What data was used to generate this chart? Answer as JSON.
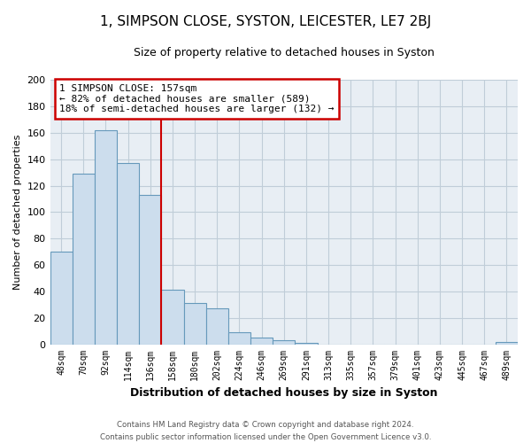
{
  "title_line1": "1, SIMPSON CLOSE, SYSTON, LEICESTER, LE7 2BJ",
  "title_line2": "Size of property relative to detached houses in Syston",
  "xlabel": "Distribution of detached houses by size in Syston",
  "ylabel": "Number of detached properties",
  "bar_labels": [
    "48sqm",
    "70sqm",
    "92sqm",
    "114sqm",
    "136sqm",
    "158sqm",
    "180sqm",
    "202sqm",
    "224sqm",
    "246sqm",
    "269sqm",
    "291sqm",
    "313sqm",
    "335sqm",
    "357sqm",
    "379sqm",
    "401sqm",
    "423sqm",
    "445sqm",
    "467sqm",
    "489sqm"
  ],
  "bar_values": [
    70,
    129,
    162,
    137,
    113,
    41,
    31,
    27,
    9,
    5,
    3,
    1,
    0,
    0,
    0,
    0,
    0,
    0,
    0,
    0,
    2
  ],
  "bar_color": "#ccdded",
  "bar_edge_color": "#6699bb",
  "property_line_label": "1 SIMPSON CLOSE: 157sqm",
  "annotation_line1": "← 82% of detached houses are smaller (589)",
  "annotation_line2": "18% of semi-detached houses are larger (132) →",
  "annotation_box_color": "#ffffff",
  "annotation_box_edge_color": "#cc0000",
  "red_line_color": "#cc0000",
  "ylim": [
    0,
    200
  ],
  "yticks": [
    0,
    20,
    40,
    60,
    80,
    100,
    120,
    140,
    160,
    180,
    200
  ],
  "grid_color": "#c0cdd8",
  "bg_color": "#e8eef4",
  "footer_line1": "Contains HM Land Registry data © Crown copyright and database right 2024.",
  "footer_line2": "Contains public sector information licensed under the Open Government Licence v3.0."
}
